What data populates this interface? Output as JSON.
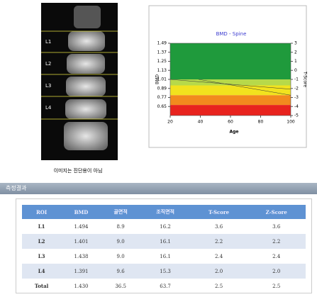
{
  "image": {
    "labels": [
      "L1",
      "L2",
      "L3",
      "L4"
    ],
    "caption": "이미지는 진단용이 아님"
  },
  "chart_data": {
    "type": "band",
    "title": "BMD - Spine",
    "x_label": "Age",
    "y_label": "BMD",
    "y2_label": "T-Score",
    "xlim": [
      20,
      100
    ],
    "xticks": [
      20,
      40,
      60,
      80,
      100
    ],
    "ylim": [
      0.53,
      1.49
    ],
    "yticks": [
      1.49,
      1.37,
      1.25,
      1.13,
      1.01,
      0.89,
      0.77,
      0.65
    ],
    "y2lim": [
      -5,
      3
    ],
    "y2ticks": [
      3,
      2,
      1,
      0,
      -1,
      -2,
      -3,
      -4,
      -5
    ],
    "bands": [
      {
        "from": 1.01,
        "to": 1.49,
        "color": "#1f9a3c"
      },
      {
        "from": 0.93,
        "to": 1.01,
        "color": "#b7d94a"
      },
      {
        "from": 0.8,
        "to": 0.93,
        "color": "#f2e21e"
      },
      {
        "from": 0.67,
        "to": 0.8,
        "color": "#f28a1e"
      },
      {
        "from": 0.53,
        "to": 0.67,
        "color": "#e8231e"
      }
    ]
  },
  "section_title": "측정결과",
  "table": {
    "header": [
      "ROI",
      "BMD",
      "골면적",
      "조직면적",
      "T-Score",
      "Z-Score"
    ],
    "rows": [
      [
        "L1",
        "1.494",
        "8.9",
        "16.2",
        "3.6",
        "3.6"
      ],
      [
        "L2",
        "1.401",
        "9.0",
        "16.1",
        "2.2",
        "2.2"
      ],
      [
        "L3",
        "1.438",
        "9.0",
        "16.1",
        "2.4",
        "2.4"
      ],
      [
        "L4",
        "1.391",
        "9.6",
        "15.3",
        "2.0",
        "2.0"
      ],
      [
        "Total",
        "1.430",
        "36.5",
        "63.7",
        "2.5",
        "2.5"
      ]
    ]
  }
}
